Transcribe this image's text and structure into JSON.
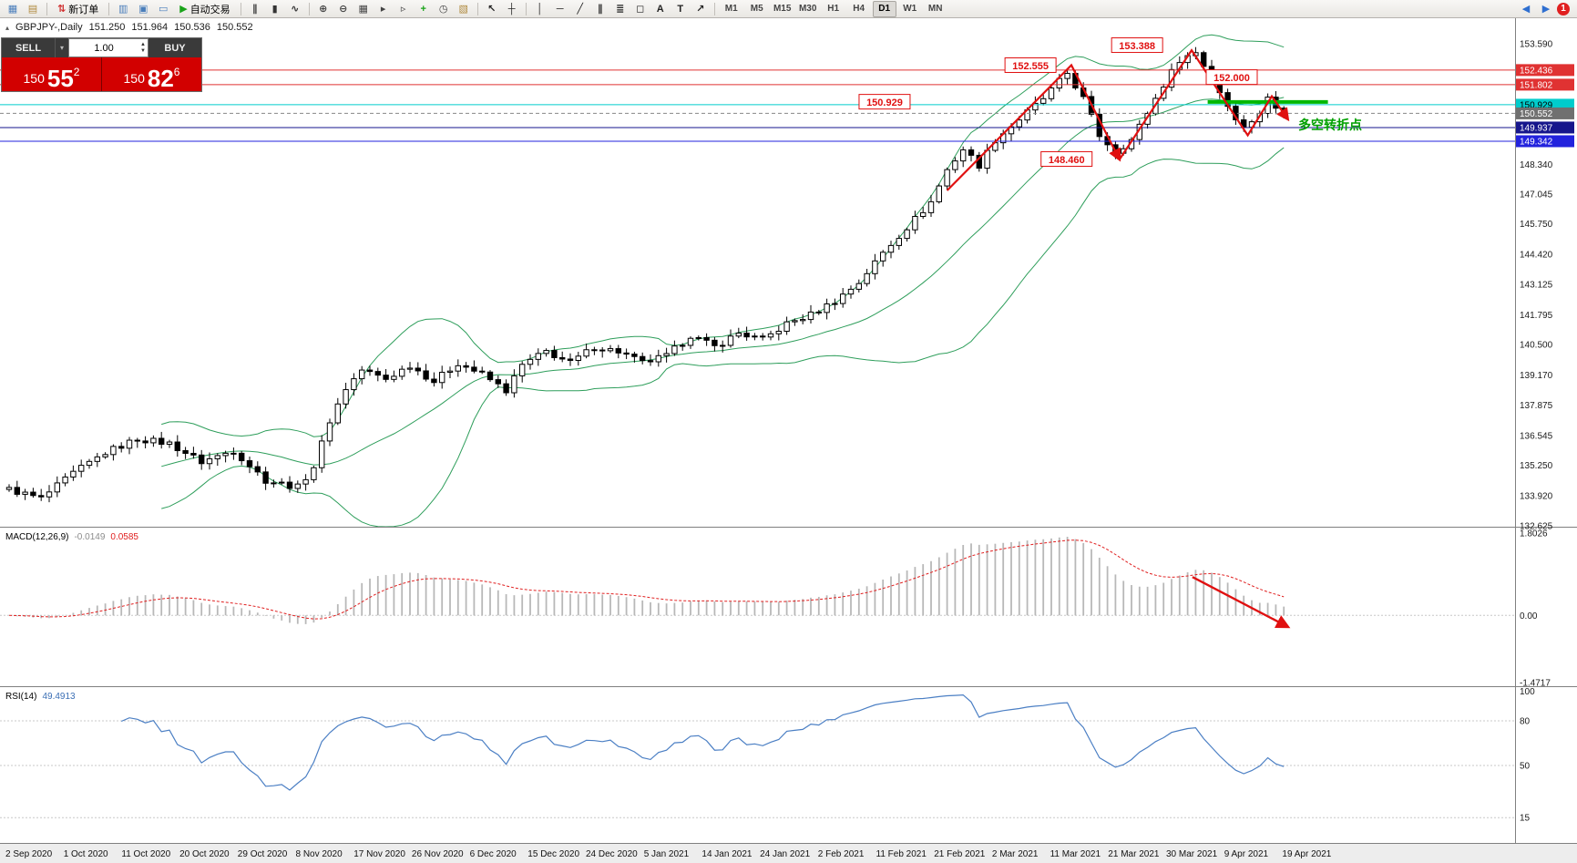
{
  "toolbar": {
    "items": [
      {
        "t": "icon",
        "name": "new-chart-icon",
        "g": "▦",
        "c": "#4a7ebb"
      },
      {
        "t": "icon",
        "name": "chart-profiles-icon",
        "g": "▤",
        "c": "#b08a3e"
      },
      {
        "t": "sep"
      },
      {
        "t": "button",
        "name": "new-order-button",
        "g": "⇅",
        "c": "#d03030",
        "label": "新订单"
      },
      {
        "t": "sep"
      },
      {
        "t": "icon",
        "name": "market-watch-icon",
        "g": "▥",
        "c": "#4a7ebb"
      },
      {
        "t": "icon",
        "name": "data-window-icon",
        "g": "▣",
        "c": "#4a7ebb"
      },
      {
        "t": "icon",
        "name": "terminal-icon",
        "g": "▭",
        "c": "#4a7ebb"
      },
      {
        "t": "button",
        "name": "autotrade-button",
        "g": "▶",
        "c": "#19a319",
        "label": "自动交易"
      },
      {
        "t": "sep"
      },
      {
        "t": "icon",
        "name": "bar-chart-icon",
        "g": "∥",
        "c": "#333333"
      },
      {
        "t": "icon",
        "name": "candlestick-icon",
        "g": "▮",
        "c": "#333333"
      },
      {
        "t": "icon",
        "name": "line-chart-icon",
        "g": "∿",
        "c": "#333333"
      },
      {
        "t": "sep"
      },
      {
        "t": "icon",
        "name": "zoom-in-icon",
        "g": "⊕",
        "c": "#444444"
      },
      {
        "t": "icon",
        "name": "zoom-out-icon",
        "g": "⊖",
        "c": "#444444"
      },
      {
        "t": "icon",
        "name": "tile-windows-icon",
        "g": "▦",
        "c": "#444444"
      },
      {
        "t": "icon",
        "name": "auto-scroll-icon",
        "g": "▸",
        "c": "#444444"
      },
      {
        "t": "icon",
        "name": "chart-shift-icon",
        "g": "▹",
        "c": "#444444"
      },
      {
        "t": "icon",
        "name": "indicators-icon",
        "g": "+",
        "c": "#19a319"
      },
      {
        "t": "icon",
        "name": "time-periods-icon",
        "g": "◷",
        "c": "#444444"
      },
      {
        "t": "icon",
        "name": "templates-icon",
        "g": "▧",
        "c": "#b08a3e"
      },
      {
        "t": "sep"
      },
      {
        "t": "icon",
        "name": "cursor-icon",
        "g": "↖",
        "c": "#222222"
      },
      {
        "t": "icon",
        "name": "crosshair-icon",
        "g": "┼",
        "c": "#222222"
      },
      {
        "t": "sep"
      },
      {
        "t": "icon",
        "name": "vertical-line-icon",
        "g": "│",
        "c": "#222222"
      },
      {
        "t": "icon",
        "name": "horizontal-line-icon",
        "g": "─",
        "c": "#222222"
      },
      {
        "t": "icon",
        "name": "trendline-icon",
        "g": "╱",
        "c": "#222222"
      },
      {
        "t": "icon",
        "name": "channel-icon",
        "g": "∥",
        "c": "#222222"
      },
      {
        "t": "icon",
        "name": "fibonacci-icon",
        "g": "≣",
        "c": "#222222"
      },
      {
        "t": "icon",
        "name": "shapes-icon",
        "g": "◻",
        "c": "#222222"
      },
      {
        "t": "icon",
        "name": "text-icon",
        "g": "A",
        "c": "#222222"
      },
      {
        "t": "icon",
        "name": "label-icon",
        "g": "T",
        "c": "#222222"
      },
      {
        "t": "icon",
        "name": "arrows-icon",
        "g": "↗",
        "c": "#222222"
      },
      {
        "t": "sep"
      },
      {
        "t": "tf"
      },
      {
        "t": "spacer"
      },
      {
        "t": "icon",
        "name": "scroll-left-icon",
        "g": "◀",
        "c": "#2f6fd0"
      },
      {
        "t": "icon",
        "name": "scroll-right-icon",
        "g": "▶",
        "c": "#2f6fd0"
      },
      {
        "t": "badge",
        "name": "notification-badge"
      }
    ],
    "timeframes": [
      "M1",
      "M5",
      "M15",
      "M30",
      "H1",
      "H4",
      "D1",
      "W1",
      "MN"
    ],
    "active_timeframe": "D1",
    "notification_count": "1"
  },
  "quote": {
    "marker": "▴",
    "symbol": "GBPJPY-,Daily",
    "open": "151.250",
    "high": "151.964",
    "low": "150.536",
    "close": "150.552"
  },
  "trade_panel": {
    "sell_label": "SELL",
    "buy_label": "BUY",
    "lot": "1.00",
    "caret": "▾",
    "spin_up": "▲",
    "spin_down": "▼",
    "sell_small": "150",
    "sell_big": "55",
    "sell_sup": "2",
    "buy_small": "150",
    "buy_big": "82",
    "buy_sup": "6"
  },
  "chart_data": {
    "type": "candlestick",
    "symbol": "GBPJPY-",
    "timeframe": "Daily",
    "bars": 160,
    "last_close": 150.552,
    "ylim": [
      132.58,
      154.69
    ],
    "price_path": [
      [
        0,
        134.2
      ],
      [
        4,
        133.8
      ],
      [
        8,
        134.9
      ],
      [
        12,
        135.8
      ],
      [
        16,
        136.4
      ],
      [
        20,
        136.2
      ],
      [
        24,
        135.4
      ],
      [
        28,
        135.9
      ],
      [
        32,
        134.6
      ],
      [
        36,
        134.3
      ],
      [
        38,
        135.2
      ],
      [
        40,
        137.2
      ],
      [
        42,
        138.6
      ],
      [
        44,
        139.4
      ],
      [
        47,
        139.0
      ],
      [
        50,
        139.6
      ],
      [
        53,
        138.9
      ],
      [
        56,
        139.7
      ],
      [
        59,
        139.2
      ],
      [
        62,
        138.5
      ],
      [
        64,
        139.6
      ],
      [
        67,
        140.2
      ],
      [
        70,
        139.7
      ],
      [
        73,
        140.4
      ],
      [
        76,
        140.2
      ],
      [
        79,
        139.7
      ],
      [
        82,
        140.0
      ],
      [
        85,
        140.9
      ],
      [
        88,
        140.4
      ],
      [
        91,
        141.0
      ],
      [
        94,
        140.7
      ],
      [
        97,
        141.4
      ],
      [
        100,
        141.8
      ],
      [
        103,
        142.4
      ],
      [
        106,
        143.2
      ],
      [
        109,
        144.5
      ],
      [
        112,
        145.6
      ],
      [
        115,
        146.7
      ],
      [
        117,
        148.1
      ],
      [
        119,
        149.0
      ],
      [
        121,
        148.3
      ],
      [
        123,
        149.4
      ],
      [
        126,
        150.3
      ],
      [
        129,
        151.2
      ],
      [
        132,
        152.3
      ],
      [
        134,
        151.2
      ],
      [
        136,
        149.6
      ],
      [
        138,
        148.9
      ],
      [
        140,
        149.4
      ],
      [
        142,
        150.6
      ],
      [
        144,
        151.8
      ],
      [
        146,
        152.9
      ],
      [
        148,
        153.2
      ],
      [
        150,
        152.1
      ],
      [
        152,
        150.9
      ],
      [
        154,
        149.9
      ],
      [
        156,
        150.6
      ],
      [
        157,
        151.2
      ],
      [
        158,
        150.8
      ],
      [
        159,
        150.55
      ]
    ],
    "price_labels": [
      "153.590",
      "148.340",
      "147.045",
      "145.750",
      "144.420",
      "143.125",
      "141.795",
      "140.500",
      "139.170",
      "137.875",
      "136.545",
      "135.250",
      "133.920",
      "132.625"
    ],
    "price_badges": [
      {
        "label": "152.436",
        "price": 152.436,
        "bg": "#e03232",
        "fg": "#ffffff"
      },
      {
        "label": "151.802",
        "price": 151.802,
        "bg": "#e03232",
        "fg": "#ffffff"
      },
      {
        "label": "150.929",
        "price": 150.929,
        "bg": "#00cccc",
        "fg": "#000000"
      },
      {
        "label": "150.552",
        "price": 150.552,
        "bg": "#707070",
        "fg": "#ffffff"
      },
      {
        "label": "149.937",
        "price": 149.937,
        "bg": "#16168c",
        "fg": "#ffffff"
      },
      {
        "label": "149.342",
        "price": 149.342,
        "bg": "#2222dd",
        "fg": "#ffffff"
      }
    ],
    "hlines": [
      {
        "price": 152.436,
        "color": "#e03232",
        "dash": ""
      },
      {
        "price": 151.802,
        "color": "#e03232",
        "dash": ""
      },
      {
        "price": 150.929,
        "color": "#00cccc",
        "dash": ""
      },
      {
        "price": 150.552,
        "color": "#888888",
        "dash": "4,3"
      },
      {
        "price": 149.937,
        "color": "#16168c",
        "dash": ""
      },
      {
        "price": 149.342,
        "color": "#2222dd",
        "dash": ""
      }
    ],
    "bollinger": {
      "period": 20,
      "deviation": 2,
      "color": "#2e9e5b"
    },
    "dates": [
      "2 Sep 2020",
      "1 Oct 2020",
      "11 Oct 2020",
      "20 Oct 2020",
      "29 Oct 2020",
      "8 Nov 2020",
      "17 Nov 2020",
      "26 Nov 2020",
      "6 Dec 2020",
      "15 Dec 2020",
      "24 Dec 2020",
      "5 Jan 2021",
      "14 Jan 2021",
      "24 Jan 2021",
      "2 Feb 2021",
      "11 Feb 2021",
      "21 Feb 2021",
      "2 Mar 2021",
      "11 Mar 2021",
      "21 Mar 2021",
      "30 Mar 2021",
      "9 Apr 2021",
      "19 Apr 2021"
    ],
    "macd": {
      "label": "MACD(12,26,9)",
      "value_main": "-0.0149",
      "value_signal": "0.0585",
      "axis": [
        {
          "label": "1.8026",
          "v": 1.8026
        },
        {
          "label": "0.00",
          "v": 0
        },
        {
          "label": "-1.4717",
          "v": -1.4717
        }
      ],
      "hist_color": "#b8b8b8",
      "signal_color": "#e02020"
    },
    "rsi": {
      "label": "RSI(14)",
      "value": "49.4913",
      "axis": [
        {
          "label": "100",
          "v": 100
        },
        {
          "label": "80",
          "v": 80
        },
        {
          "label": "50",
          "v": 50
        },
        {
          "label": "15",
          "v": 15
        }
      ],
      "levels": [
        80,
        50,
        15
      ],
      "color": "#4b7fc4"
    },
    "annotations": {
      "annotation_color": "#e01010",
      "price_labels": [
        {
          "text": "153.388",
          "day": 140.7,
          "price": 153.5
        },
        {
          "text": "152.555",
          "day": 127.4,
          "price": 152.63
        },
        {
          "text": "152.000",
          "day": 152.5,
          "price": 152.11
        },
        {
          "text": "150.929",
          "day": 109.2,
          "price": 151.04
        },
        {
          "text": "148.460",
          "day": 131.9,
          "price": 148.55
        }
      ],
      "zigzag": [
        [
          [
            117,
            147.2
          ],
          [
            132.5,
            152.65
          ],
          [
            138.5,
            148.55
          ]
        ],
        [
          [
            138.5,
            148.55
          ],
          [
            147.5,
            153.3
          ],
          [
            154.5,
            149.6
          ],
          [
            157.5,
            151.3
          ],
          [
            159.5,
            150.3
          ]
        ]
      ],
      "green_line": {
        "from": [
          149.5,
          151.05
        ],
        "to": [
          164.5,
          151.05
        ],
        "color": "#00b800"
      },
      "cn_text": {
        "text": "多空转折点",
        "day": 160.8,
        "price": 149.85,
        "color": "#00a000"
      },
      "macd_arrow": {
        "from": [
          147.6,
          0.84
        ],
        "to": [
          159.5,
          -0.25
        ],
        "color": "#e01010"
      }
    }
  }
}
